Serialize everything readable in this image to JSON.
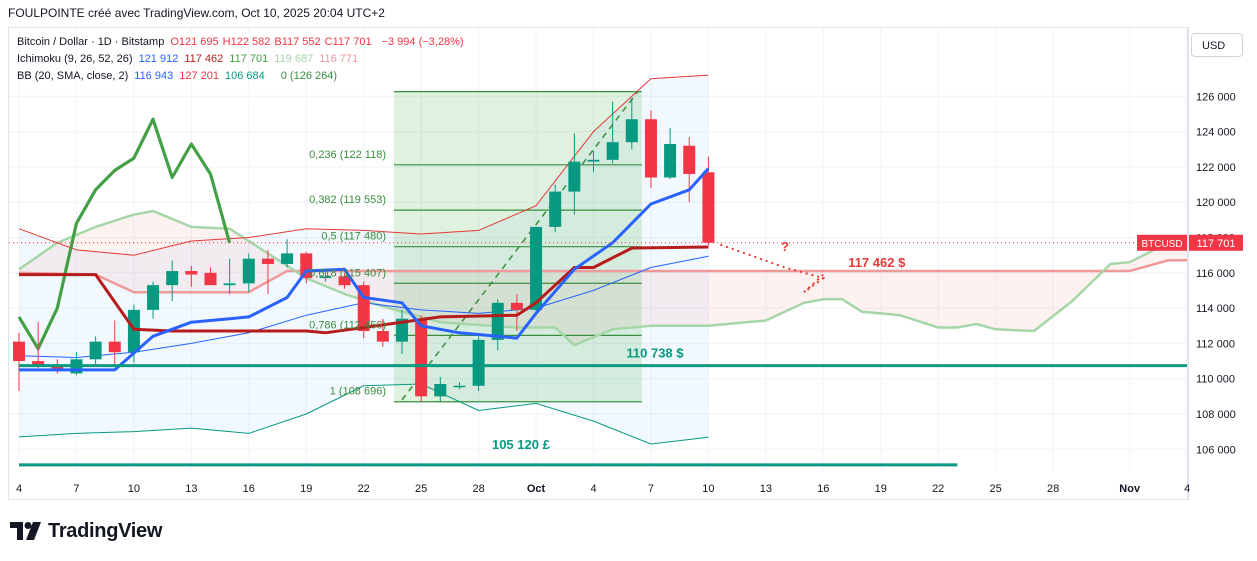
{
  "header": {
    "attribution": "FOULPOINTE créé avec TradingView.com, Oct 10, 2025 20:04 UTC+2"
  },
  "legend": {
    "symbol": "Bitcoin / Dollar · 1D · Bitstamp",
    "ohlc": [
      {
        "label": "O",
        "value": "121 695"
      },
      {
        "label": "H",
        "value": "122 582"
      },
      {
        "label": "B",
        "value": "117 552"
      },
      {
        "label": "C",
        "value": "117 701"
      }
    ],
    "change": "−3 994 (−3,28%)",
    "ichimoku_label": "Ichimoku (9, 26, 52, 26)",
    "ichimoku_values": [
      "121 912",
      "117 462",
      "117 701",
      "119 687",
      "116 771"
    ],
    "bb_label": "BB (20, SMA, close, 2)",
    "bb_values": [
      "116 943",
      "127 201",
      "106 684"
    ],
    "fib_zero": "0 (126 264)"
  },
  "currency_button": "USD",
  "brand": "TradingView",
  "colors": {
    "up": "#089981",
    "down": "#f23645",
    "fib": "#388e3c",
    "blue": "#2962ff",
    "kijun": "#b71c1c",
    "teal": "#089981",
    "red": "#e53935",
    "grid": "#f0f3fa"
  },
  "chart_data": {
    "type": "candlestick",
    "x_tick_labels": [
      "4",
      "7",
      "10",
      "13",
      "16",
      "19",
      "22",
      "25",
      "28",
      "Oct",
      "4",
      "7",
      "10",
      "13",
      "16",
      "19",
      "22",
      "25",
      "28",
      "Nov",
      "4"
    ],
    "x_tick_dates": [
      "2025-09-04",
      "2025-09-07",
      "2025-09-10",
      "2025-09-13",
      "2025-09-16",
      "2025-09-19",
      "2025-09-22",
      "2025-09-25",
      "2025-09-28",
      "2025-10-01",
      "2025-10-04",
      "2025-10-07",
      "2025-10-10",
      "2025-10-13",
      "2025-10-16",
      "2025-10-19",
      "2025-10-22",
      "2025-10-25",
      "2025-10-28",
      "2025-11-01",
      "2025-11-04"
    ],
    "y_ticks": [
      106000,
      108000,
      110000,
      112000,
      114000,
      116000,
      118000,
      120000,
      122000,
      124000,
      126000
    ],
    "ylim": [
      105000,
      127600
    ],
    "last_price_label": "BTCUSD",
    "last_price": 117701,
    "last_price_text": "117 701",
    "candles": [
      {
        "date": "2025-09-04",
        "o": 112100,
        "h": 112600,
        "l": 109300,
        "c": 111000
      },
      {
        "date": "2025-09-05",
        "o": 111000,
        "h": 113200,
        "l": 110600,
        "c": 110800
      },
      {
        "date": "2025-09-06",
        "o": 110700,
        "h": 111100,
        "l": 110300,
        "c": 110500
      },
      {
        "date": "2025-09-07",
        "o": 110300,
        "h": 111500,
        "l": 110200,
        "c": 111100
      },
      {
        "date": "2025-09-08",
        "o": 111100,
        "h": 112400,
        "l": 110700,
        "c": 112100
      },
      {
        "date": "2025-09-09",
        "o": 112100,
        "h": 113300,
        "l": 110800,
        "c": 111500
      },
      {
        "date": "2025-09-10",
        "o": 111500,
        "h": 114200,
        "l": 110900,
        "c": 113900
      },
      {
        "date": "2025-09-11",
        "o": 113900,
        "h": 115500,
        "l": 113400,
        "c": 115300
      },
      {
        "date": "2025-09-12",
        "o": 115300,
        "h": 116700,
        "l": 114400,
        "c": 116100
      },
      {
        "date": "2025-09-13",
        "o": 116100,
        "h": 116400,
        "l": 115200,
        "c": 115900
      },
      {
        "date": "2025-09-14",
        "o": 116000,
        "h": 116300,
        "l": 115300,
        "c": 115300
      },
      {
        "date": "2025-09-15",
        "o": 115300,
        "h": 116800,
        "l": 114800,
        "c": 115400
      },
      {
        "date": "2025-09-16",
        "o": 115400,
        "h": 117100,
        "l": 114900,
        "c": 116800
      },
      {
        "date": "2025-09-17",
        "o": 116800,
        "h": 117300,
        "l": 114800,
        "c": 116500
      },
      {
        "date": "2025-09-18",
        "o": 116500,
        "h": 117900,
        "l": 116300,
        "c": 117100
      },
      {
        "date": "2025-09-19",
        "o": 117100,
        "h": 117200,
        "l": 115400,
        "c": 115700
      },
      {
        "date": "2025-09-20",
        "o": 115700,
        "h": 116200,
        "l": 115500,
        "c": 115800
      },
      {
        "date": "2025-09-21",
        "o": 115800,
        "h": 116000,
        "l": 115100,
        "c": 115300
      },
      {
        "date": "2025-09-22",
        "o": 115300,
        "h": 115500,
        "l": 112300,
        "c": 112700
      },
      {
        "date": "2025-09-23",
        "o": 112700,
        "h": 113400,
        "l": 111800,
        "c": 112100
      },
      {
        "date": "2025-09-24",
        "o": 112100,
        "h": 113900,
        "l": 111400,
        "c": 113400
      },
      {
        "date": "2025-09-25",
        "o": 113400,
        "h": 113600,
        "l": 108700,
        "c": 109000
      },
      {
        "date": "2025-09-26",
        "o": 109000,
        "h": 110100,
        "l": 108700,
        "c": 109700
      },
      {
        "date": "2025-09-27",
        "o": 109600,
        "h": 109800,
        "l": 109400,
        "c": 109600
      },
      {
        "date": "2025-09-28",
        "o": 109600,
        "h": 112400,
        "l": 109300,
        "c": 112200
      },
      {
        "date": "2025-09-29",
        "o": 112200,
        "h": 114500,
        "l": 111600,
        "c": 114300
      },
      {
        "date": "2025-09-30",
        "o": 114300,
        "h": 114800,
        "l": 112700,
        "c": 113900
      },
      {
        "date": "2025-10-01",
        "o": 113900,
        "h": 118600,
        "l": 113800,
        "c": 118600
      },
      {
        "date": "2025-10-02",
        "o": 118600,
        "h": 121000,
        "l": 118300,
        "c": 120600
      },
      {
        "date": "2025-10-03",
        "o": 120600,
        "h": 123900,
        "l": 119300,
        "c": 122300
      },
      {
        "date": "2025-10-04",
        "o": 122300,
        "h": 122900,
        "l": 121700,
        "c": 122400
      },
      {
        "date": "2025-10-05",
        "o": 122400,
        "h": 125700,
        "l": 122200,
        "c": 123400
      },
      {
        "date": "2025-10-06",
        "o": 123400,
        "h": 125900,
        "l": 123000,
        "c": 124700
      },
      {
        "date": "2025-10-07",
        "o": 124700,
        "h": 125200,
        "l": 120800,
        "c": 121400
      },
      {
        "date": "2025-10-08",
        "o": 121400,
        "h": 124200,
        "l": 121300,
        "c": 123300
      },
      {
        "date": "2025-10-09",
        "o": 123200,
        "h": 123700,
        "l": 120000,
        "c": 121600
      },
      {
        "date": "2025-10-10",
        "o": 121695,
        "h": 122582,
        "l": 117552,
        "c": 117701
      }
    ],
    "bb_upper": [
      {
        "date": "2025-09-04",
        "v": 118500
      },
      {
        "date": "2025-09-07",
        "v": 117300
      },
      {
        "date": "2025-09-10",
        "v": 117000
      },
      {
        "date": "2025-09-13",
        "v": 117800
      },
      {
        "date": "2025-09-16",
        "v": 118000
      },
      {
        "date": "2025-09-19",
        "v": 118500
      },
      {
        "date": "2025-09-22",
        "v": 118400
      },
      {
        "date": "2025-09-25",
        "v": 118200
      },
      {
        "date": "2025-09-28",
        "v": 118400
      },
      {
        "date": "2025-10-01",
        "v": 119800
      },
      {
        "date": "2025-10-04",
        "v": 124000
      },
      {
        "date": "2025-10-07",
        "v": 127000
      },
      {
        "date": "2025-10-10",
        "v": 127201
      }
    ],
    "bb_basis": [
      {
        "date": "2025-09-04",
        "v": 111300
      },
      {
        "date": "2025-09-07",
        "v": 111200
      },
      {
        "date": "2025-09-10",
        "v": 111500
      },
      {
        "date": "2025-09-13",
        "v": 112000
      },
      {
        "date": "2025-09-16",
        "v": 112600
      },
      {
        "date": "2025-09-19",
        "v": 113600
      },
      {
        "date": "2025-09-22",
        "v": 114300
      },
      {
        "date": "2025-09-25",
        "v": 113900
      },
      {
        "date": "2025-09-28",
        "v": 113700
      },
      {
        "date": "2025-10-01",
        "v": 114000
      },
      {
        "date": "2025-10-04",
        "v": 115000
      },
      {
        "date": "2025-10-07",
        "v": 116300
      },
      {
        "date": "2025-10-10",
        "v": 116943
      }
    ],
    "bb_lower": [
      {
        "date": "2025-09-04",
        "v": 106700
      },
      {
        "date": "2025-09-07",
        "v": 106900
      },
      {
        "date": "2025-09-10",
        "v": 107000
      },
      {
        "date": "2025-09-13",
        "v": 107200
      },
      {
        "date": "2025-09-16",
        "v": 106900
      },
      {
        "date": "2025-09-19",
        "v": 108000
      },
      {
        "date": "2025-09-22",
        "v": 109600
      },
      {
        "date": "2025-09-25",
        "v": 109700
      },
      {
        "date": "2025-09-28",
        "v": 108200
      },
      {
        "date": "2025-10-01",
        "v": 108600
      },
      {
        "date": "2025-10-04",
        "v": 107600
      },
      {
        "date": "2025-10-07",
        "v": 106300
      },
      {
        "date": "2025-10-10",
        "v": 106684
      }
    ],
    "tenkan": [
      {
        "date": "2025-09-04",
        "v": 110500
      },
      {
        "date": "2025-09-09",
        "v": 110500
      },
      {
        "date": "2025-09-11",
        "v": 112400
      },
      {
        "date": "2025-09-13",
        "v": 113200
      },
      {
        "date": "2025-09-15",
        "v": 113400
      },
      {
        "date": "2025-09-16",
        "v": 113500
      },
      {
        "date": "2025-09-18",
        "v": 114600
      },
      {
        "date": "2025-09-19",
        "v": 116100
      },
      {
        "date": "2025-09-21",
        "v": 116200
      },
      {
        "date": "2025-09-22",
        "v": 114600
      },
      {
        "date": "2025-09-24",
        "v": 114300
      },
      {
        "date": "2025-09-25",
        "v": 113000
      },
      {
        "date": "2025-09-27",
        "v": 112600
      },
      {
        "date": "2025-09-30",
        "v": 112300
      },
      {
        "date": "2025-10-01",
        "v": 113700
      },
      {
        "date": "2025-10-03",
        "v": 116200
      },
      {
        "date": "2025-10-05",
        "v": 117700
      },
      {
        "date": "2025-10-07",
        "v": 119900
      },
      {
        "date": "2025-10-09",
        "v": 120700
      },
      {
        "date": "2025-10-10",
        "v": 121912
      }
    ],
    "kijun": [
      {
        "date": "2025-09-04",
        "v": 115900
      },
      {
        "date": "2025-09-08",
        "v": 115900
      },
      {
        "date": "2025-09-10",
        "v": 112800
      },
      {
        "date": "2025-09-12",
        "v": 112700
      },
      {
        "date": "2025-09-19",
        "v": 112700
      },
      {
        "date": "2025-09-20",
        "v": 112600
      },
      {
        "date": "2025-09-26",
        "v": 113500
      },
      {
        "date": "2025-09-30",
        "v": 113600
      },
      {
        "date": "2025-10-01",
        "v": 114300
      },
      {
        "date": "2025-10-03",
        "v": 116300
      },
      {
        "date": "2025-10-04",
        "v": 116300
      },
      {
        "date": "2025-10-06",
        "v": 117400
      },
      {
        "date": "2025-10-10",
        "v": 117462
      }
    ],
    "chikou": [
      {
        "date": "2025-09-04",
        "v": 113500
      },
      {
        "date": "2025-09-05",
        "v": 111700
      },
      {
        "date": "2025-09-06",
        "v": 114000
      },
      {
        "date": "2025-09-07",
        "v": 118800
      },
      {
        "date": "2025-09-08",
        "v": 120700
      },
      {
        "date": "2025-09-09",
        "v": 121800
      },
      {
        "date": "2025-09-10",
        "v": 122500
      },
      {
        "date": "2025-09-11",
        "v": 124700
      },
      {
        "date": "2025-09-12",
        "v": 121400
      },
      {
        "date": "2025-09-13",
        "v": 123300
      },
      {
        "date": "2025-09-14",
        "v": 121600
      },
      {
        "date": "2025-09-15",
        "v": 117701
      }
    ],
    "span_a": [
      {
        "date": "2025-09-04",
        "v": 116200
      },
      {
        "date": "2025-09-06",
        "v": 117700
      },
      {
        "date": "2025-09-08",
        "v": 118600
      },
      {
        "date": "2025-09-10",
        "v": 119300
      },
      {
        "date": "2025-09-11",
        "v": 119500
      },
      {
        "date": "2025-09-13",
        "v": 118600
      },
      {
        "date": "2025-09-15",
        "v": 118500
      },
      {
        "date": "2025-09-17",
        "v": 117100
      },
      {
        "date": "2025-09-19",
        "v": 115700
      },
      {
        "date": "2025-09-21",
        "v": 114800
      },
      {
        "date": "2025-09-23",
        "v": 114100
      },
      {
        "date": "2025-09-26",
        "v": 113200
      },
      {
        "date": "2025-09-30",
        "v": 112900
      },
      {
        "date": "2025-10-02",
        "v": 112900
      },
      {
        "date": "2025-10-03",
        "v": 111900
      },
      {
        "date": "2025-10-05",
        "v": 112800
      },
      {
        "date": "2025-10-07",
        "v": 113000
      },
      {
        "date": "2025-10-10",
        "v": 113000
      },
      {
        "date": "2025-10-13",
        "v": 113300
      },
      {
        "date": "2025-10-15",
        "v": 114300
      },
      {
        "date": "2025-10-16",
        "v": 114500
      },
      {
        "date": "2025-10-17",
        "v": 114500
      },
      {
        "date": "2025-10-18",
        "v": 113800
      },
      {
        "date": "2025-10-20",
        "v": 113600
      },
      {
        "date": "2025-10-22",
        "v": 112900
      },
      {
        "date": "2025-10-23",
        "v": 112900
      },
      {
        "date": "2025-10-24",
        "v": 113100
      },
      {
        "date": "2025-10-25",
        "v": 112800
      },
      {
        "date": "2025-10-27",
        "v": 112700
      },
      {
        "date": "2025-10-29",
        "v": 114400
      },
      {
        "date": "2025-10-31",
        "v": 116500
      },
      {
        "date": "2025-11-01",
        "v": 116600
      },
      {
        "date": "2025-11-03",
        "v": 117700
      },
      {
        "date": "2025-11-05",
        "v": 118000
      },
      {
        "date": "2025-11-07",
        "v": 118800
      },
      {
        "date": "2025-11-09",
        "v": 119500
      },
      {
        "date": "2025-11-11",
        "v": 121000
      }
    ],
    "span_b": [
      {
        "date": "2025-09-04",
        "v": 116000
      },
      {
        "date": "2025-09-08",
        "v": 115900
      },
      {
        "date": "2025-09-10",
        "v": 114900
      },
      {
        "date": "2025-09-16",
        "v": 114900
      },
      {
        "date": "2025-09-18",
        "v": 116100
      },
      {
        "date": "2025-10-31",
        "v": 116100
      },
      {
        "date": "2025-11-01",
        "v": 116100
      },
      {
        "date": "2025-11-03",
        "v": 116700
      },
      {
        "date": "2025-11-11",
        "v": 116800
      }
    ],
    "fibonacci": {
      "start_date": "2025-09-24",
      "end_date": "2025-10-06",
      "levels": [
        {
          "ratio": "0",
          "value": 126264,
          "label": ""
        },
        {
          "ratio": "0,236",
          "value": 122118,
          "label": "0,236 (122 118)"
        },
        {
          "ratio": "0,382",
          "value": 119553,
          "label": "0,382 (119 553)"
        },
        {
          "ratio": "0,5",
          "value": 117480,
          "label": "0,5 (117 480)"
        },
        {
          "ratio": "0,618",
          "value": 115407,
          "label": "0,618 (115 407)"
        },
        {
          "ratio": "0,786",
          "value": 112456,
          "label": "0,786 (112 456)"
        },
        {
          "ratio": "1",
          "value": 108696,
          "label": "1 (108 696)"
        }
      ]
    },
    "support_lines": [
      {
        "value": 110738,
        "label": "110 738 $",
        "start": "2025-09-04",
        "end": "2025-11-07"
      },
      {
        "value": 105120,
        "label": "105 120 £",
        "start": "2025-09-04",
        "end": "2025-10-23"
      }
    ],
    "resistance_label": "117 462 $",
    "annotation": "?"
  }
}
